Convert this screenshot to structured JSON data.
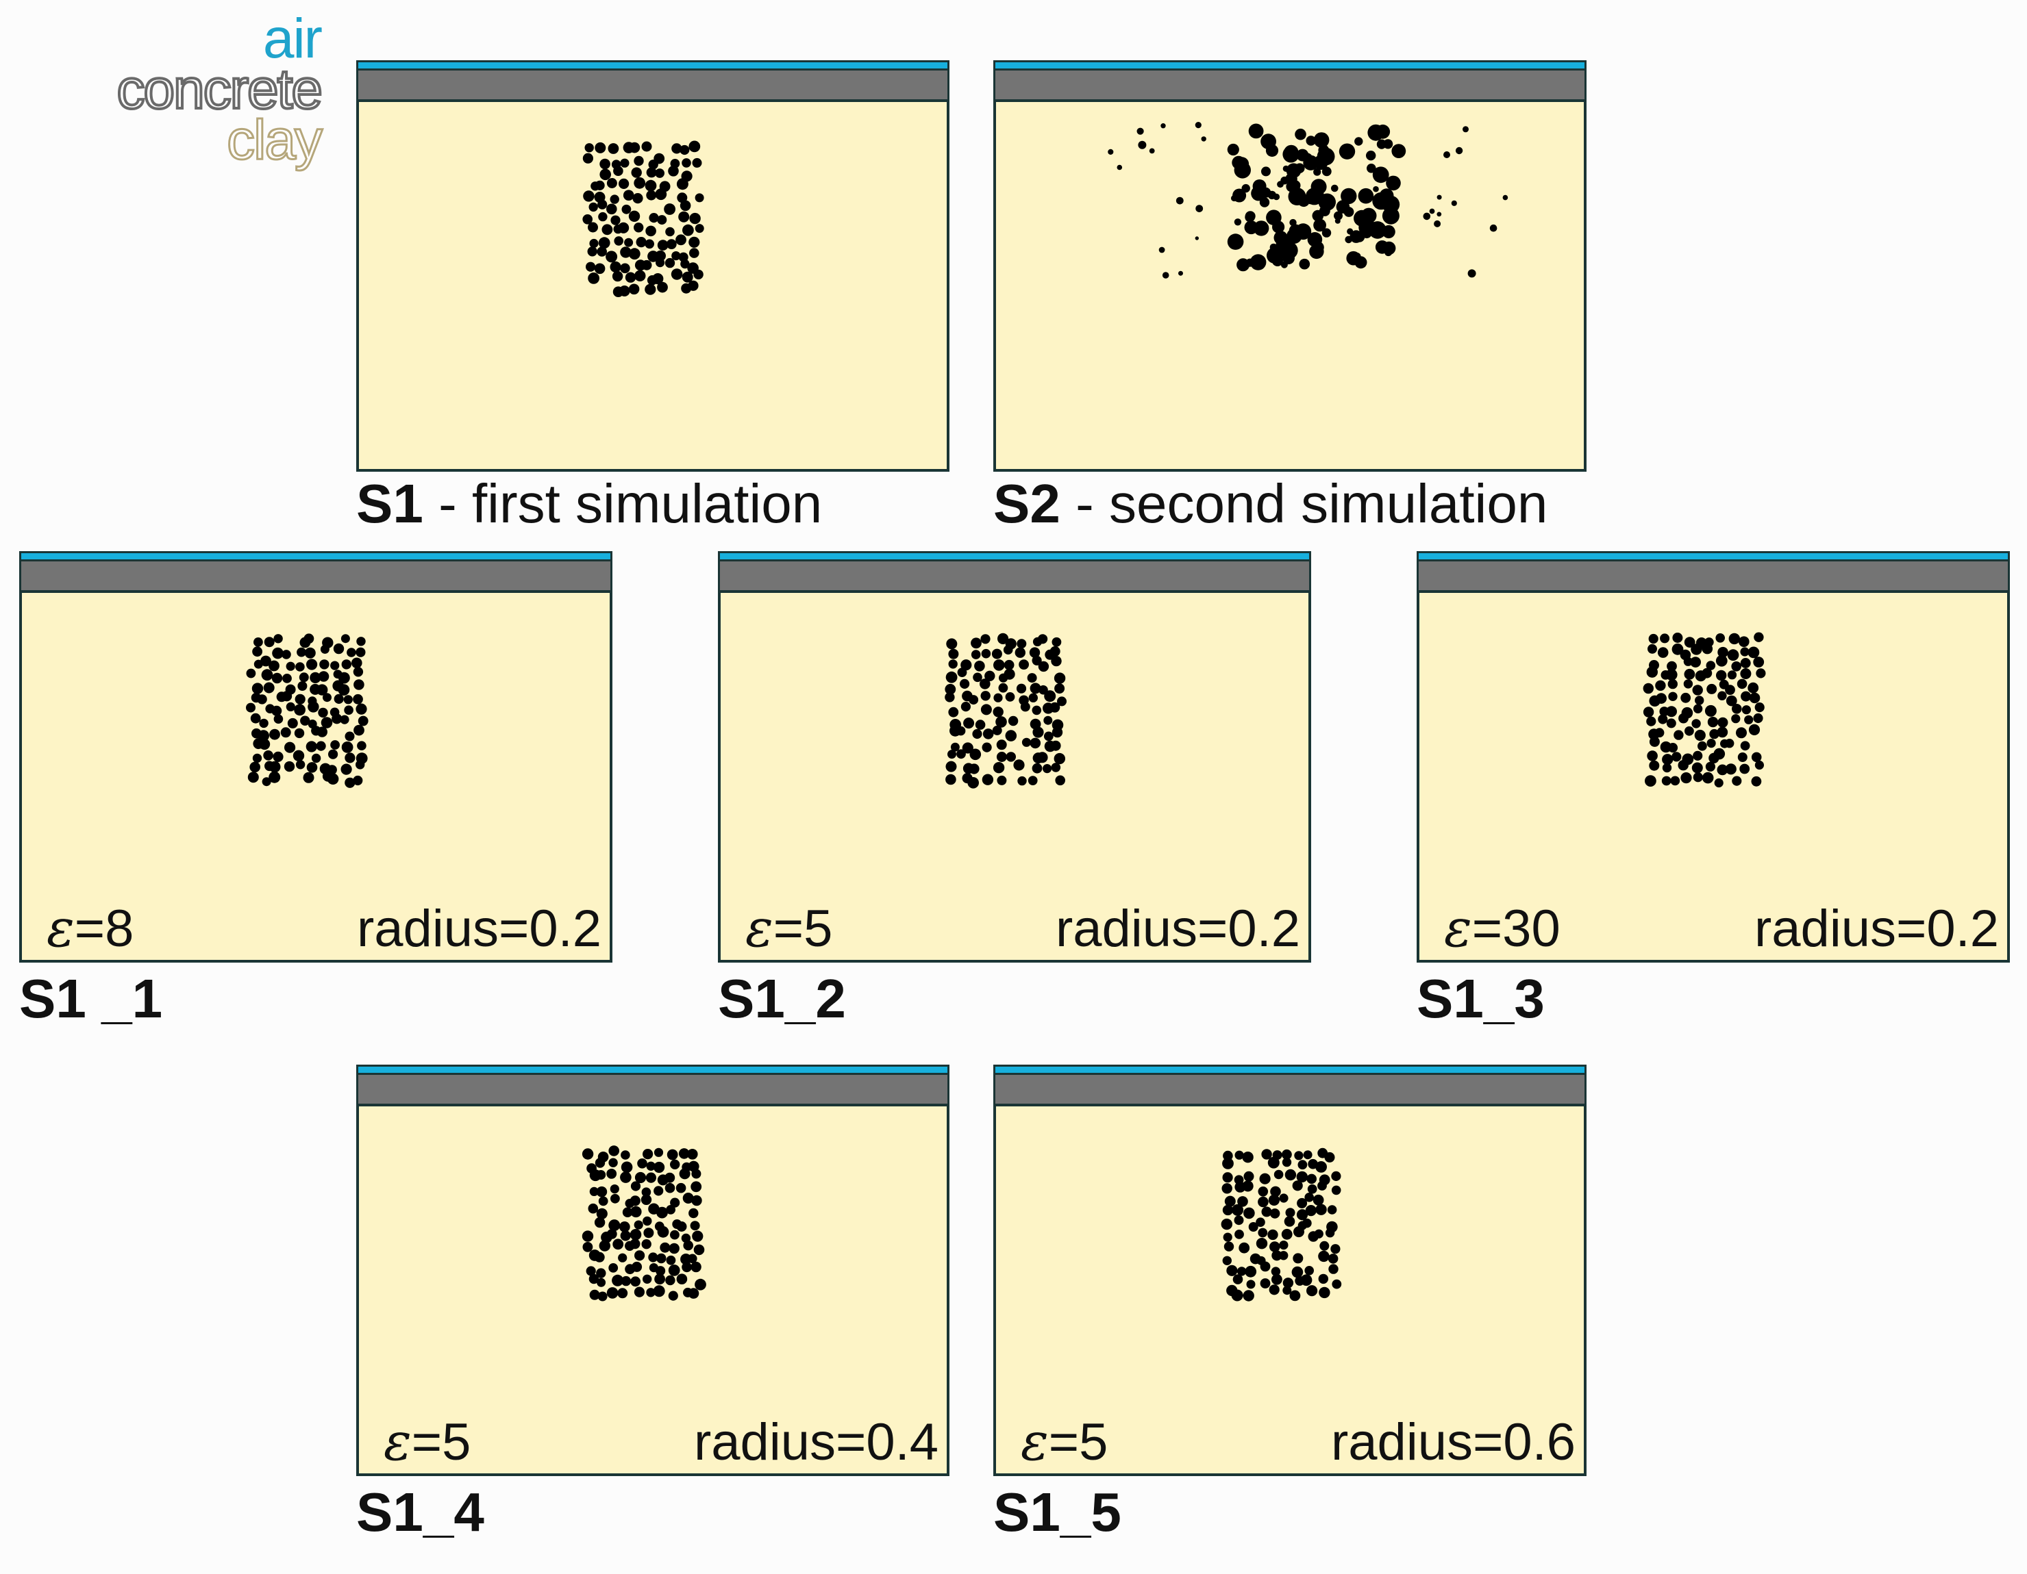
{
  "legend": {
    "air": "air",
    "concrete": "concrete",
    "clay": "clay"
  },
  "colors": {
    "air": "#17b0dd",
    "concrete": "#747474",
    "clay": "#fdf4c6",
    "particles": "#000000"
  },
  "panels": {
    "s1": {
      "id": "S1",
      "desc": " - first simulation",
      "epsilon": "",
      "radius": ""
    },
    "s2": {
      "id": "S2",
      "desc": " - second simulation",
      "epsilon": "",
      "radius": ""
    },
    "s1_1": {
      "id": "S1 _1",
      "desc": "",
      "eps_symbol": "ε",
      "epsilon": "=8",
      "radius": "radius=0.2"
    },
    "s1_2": {
      "id": "S1_2",
      "desc": "",
      "eps_symbol": "ε",
      "epsilon": "=5",
      "radius": "radius=0.2"
    },
    "s1_3": {
      "id": "S1_3",
      "desc": "",
      "eps_symbol": "ε",
      "epsilon": "=30",
      "radius": "radius=0.2"
    },
    "s1_4": {
      "id": "S1_4",
      "desc": "",
      "eps_symbol": "ε",
      "epsilon": "=5",
      "radius": "radius=0.4"
    },
    "s1_5": {
      "id": "S1_5",
      "desc": "",
      "eps_symbol": "ε",
      "epsilon": "=5",
      "radius": "radius=0.6"
    }
  }
}
